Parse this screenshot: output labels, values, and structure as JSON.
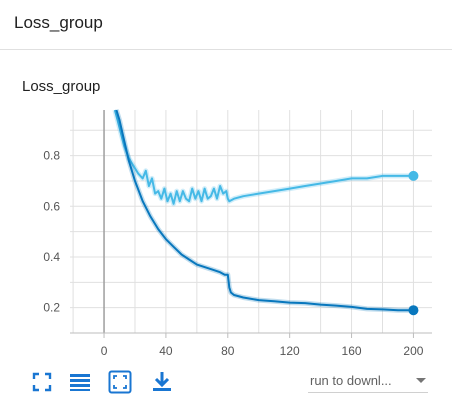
{
  "group": {
    "title": "Loss_group"
  },
  "card": {
    "title": "Loss_group"
  },
  "colors": {
    "series_a": "#45b9e6",
    "series_b": "#0877bd",
    "grid": "#e0e0e0",
    "zero_axis": "#9e9e9e",
    "toolbar": "#1976d2"
  },
  "chart_data": {
    "type": "line",
    "title": "",
    "xlabel": "",
    "ylabel": "",
    "xlim": [
      -22,
      212
    ],
    "ylim": [
      0.1,
      0.98
    ],
    "xticks": [
      0,
      40,
      80,
      120,
      160,
      200
    ],
    "xtick_labels": [
      "0",
      "40",
      "80",
      "120",
      "160",
      "200"
    ],
    "yticks": [
      0.2,
      0.4,
      0.6,
      0.8
    ],
    "ytick_labels": [
      "0.2",
      "0.4",
      "0.6",
      "0.8"
    ],
    "grid": true,
    "series": [
      {
        "color": "#45b9e6",
        "x": [
          7,
          10,
          13,
          16,
          19,
          22,
          25,
          27,
          29,
          31,
          33,
          35,
          37,
          39,
          41,
          43,
          45,
          47,
          49,
          51,
          53,
          55,
          57,
          59,
          61,
          63,
          65,
          67,
          69,
          71,
          73,
          75,
          77,
          79,
          80,
          81,
          84,
          90,
          100,
          110,
          120,
          130,
          140,
          150,
          160,
          170,
          180,
          190,
          200
        ],
        "y": [
          0.98,
          0.91,
          0.84,
          0.79,
          0.76,
          0.73,
          0.71,
          0.74,
          0.68,
          0.71,
          0.65,
          0.66,
          0.63,
          0.67,
          0.62,
          0.65,
          0.61,
          0.66,
          0.62,
          0.66,
          0.63,
          0.62,
          0.67,
          0.63,
          0.66,
          0.62,
          0.67,
          0.63,
          0.64,
          0.67,
          0.63,
          0.68,
          0.65,
          0.66,
          0.63,
          0.62,
          0.63,
          0.64,
          0.65,
          0.66,
          0.67,
          0.68,
          0.69,
          0.7,
          0.71,
          0.71,
          0.72,
          0.72,
          0.72
        ]
      },
      {
        "color": "#0877bd",
        "x": [
          8,
          10,
          13,
          16,
          20,
          25,
          30,
          35,
          40,
          45,
          50,
          55,
          60,
          65,
          70,
          75,
          78,
          80,
          81,
          82,
          84,
          90,
          100,
          110,
          120,
          130,
          140,
          150,
          160,
          170,
          180,
          190,
          200
        ],
        "y": [
          0.98,
          0.94,
          0.86,
          0.78,
          0.7,
          0.62,
          0.56,
          0.51,
          0.47,
          0.44,
          0.41,
          0.39,
          0.37,
          0.36,
          0.35,
          0.34,
          0.33,
          0.33,
          0.28,
          0.26,
          0.25,
          0.24,
          0.23,
          0.225,
          0.22,
          0.218,
          0.212,
          0.208,
          0.203,
          0.195,
          0.193,
          0.19,
          0.19
        ]
      }
    ]
  },
  "toolbar": {
    "fullscreen": "fullscreen-icon",
    "data_table": "list-icon",
    "fit_domain": "fit-domain-icon",
    "download": "download-icon"
  },
  "run_select": {
    "label": "run to downl..."
  }
}
